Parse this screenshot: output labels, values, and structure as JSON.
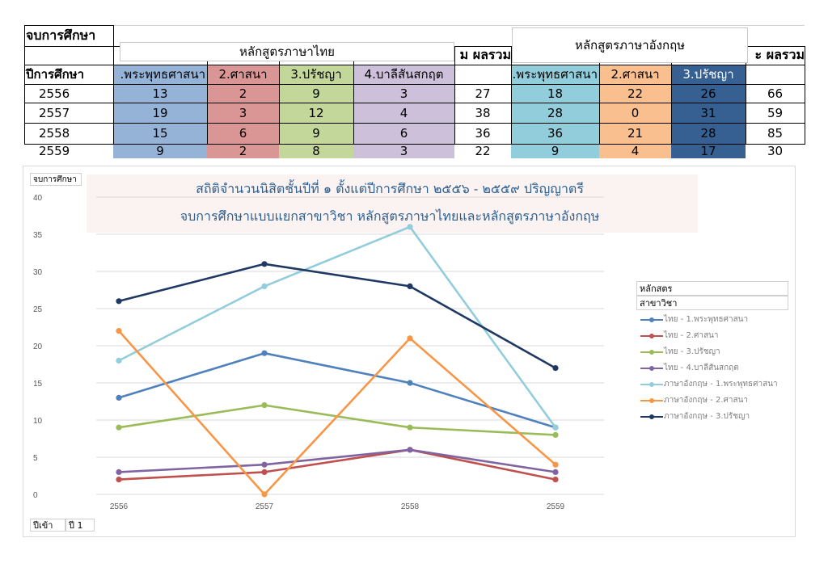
{
  "sheet": {
    "corner_label": "จบการศึกษา",
    "row_header_label": "ปีการศึกษา",
    "group_thai": "หลักสูตรภาษาไทย",
    "group_eng": "หลักสูตรภาษาอังกฤษ",
    "total_label": "ผลรวม",
    "total_label_partial": "ะ ผลรวม",
    "total_label_partial_left": "ม ผลรวม",
    "col_headers": [
      ".พระพุทธศาสนา",
      "2.ศาสนา",
      "3.ปรัชญา",
      "4.บาลีสันสกฤต",
      "",
      "1.พระพุทธศาสนา",
      "2.ศาสนา",
      "3.ปรัชญา",
      ""
    ],
    "rows": [
      {
        "year": "2556",
        "cells": [
          "13",
          "2",
          "9",
          "3",
          "27",
          "18",
          "22",
          "26",
          "66"
        ]
      },
      {
        "year": "2557",
        "cells": [
          "19",
          "3",
          "12",
          "4",
          "38",
          "28",
          "0",
          "31",
          "59"
        ]
      },
      {
        "year": "2558",
        "cells": [
          "15",
          "6",
          "9",
          "6",
          "36",
          "36",
          "21",
          "28",
          "85"
        ]
      },
      {
        "year": "2559",
        "cells": [
          "9",
          "2",
          "8",
          "3",
          "22",
          "9",
          "4",
          "17",
          "30"
        ]
      }
    ],
    "col_colors": [
      "#95b3d7",
      "#da9694",
      "#c4d79b",
      "#ccc0da",
      "#ffffff",
      "#92cddc",
      "#fabf8f",
      "#366092",
      "#ffffff"
    ]
  },
  "chart_data": {
    "type": "line",
    "corner_tag": "จบการศึกษา",
    "title_line1": "สถิติจำนวนนิสิตชั้นปีที่ ๑ ตั้งแต่ปีการศึกษา ๒๕๕๖ - ๒๕๕๙ ปริญญาตรี",
    "title_line2": "จบการศึกษาแบบแยกสาขาวิชา หลักสูตรภาษาไทยและหลักสูตรภาษาอังกฤษ",
    "categories": [
      "2556",
      "2557",
      "2558",
      "2559"
    ],
    "ylim": [
      0,
      40
    ],
    "yticks": [
      "0",
      "5",
      "10",
      "15",
      "20",
      "25",
      "30",
      "35",
      "40"
    ],
    "grid": true,
    "legend_position": "right",
    "legend_header1": "หลักสตร",
    "legend_header2": "สาขาวิชา",
    "series": [
      {
        "name": "ไทย - 1.พระพุทธศาสนา",
        "color": "#4f81bd",
        "values": [
          13,
          19,
          15,
          9
        ]
      },
      {
        "name": "ไทย - 2.ศาสนา",
        "color": "#c0504d",
        "values": [
          2,
          3,
          6,
          2
        ]
      },
      {
        "name": "ไทย - 3.ปรัชญา",
        "color": "#9bbb59",
        "values": [
          9,
          12,
          9,
          8
        ]
      },
      {
        "name": "ไทย - 4.บาลีสันสกฤต",
        "color": "#8064a2",
        "values": [
          3,
          4,
          6,
          3
        ]
      },
      {
        "name": "ภาษาอังกฤษ - 1.พระพุทธศาสนา",
        "color": "#92cddc",
        "values": [
          18,
          28,
          36,
          9
        ]
      },
      {
        "name": "ภาษาอังกฤษ - 2.ศาสนา",
        "color": "#f79646",
        "values": [
          22,
          0,
          21,
          4
        ]
      },
      {
        "name": "ภาษาอังกฤษ - 3.ปรัชญา",
        "color": "#1f3864",
        "values": [
          26,
          31,
          28,
          17
        ]
      }
    ],
    "filter_labels": [
      "ปีเข้า",
      "ปี 1"
    ]
  }
}
